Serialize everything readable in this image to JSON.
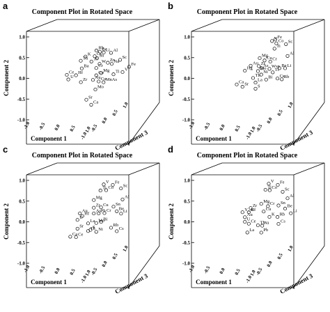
{
  "chart_data": [
    {
      "type": "scatter",
      "letter": "a",
      "title": "Component Plot in Rotated Space",
      "xlabel": "Component 1",
      "ylabel": "Component 2",
      "zlabel": "Component 3",
      "ticks_component1": [
        "-1.0",
        "-0.5",
        "0.0",
        "0.5",
        "1.0"
      ],
      "ticks_component2": [
        "1.0",
        "0.5",
        "0.0",
        "-0.5",
        "-1.0"
      ],
      "ticks_component3": [
        "-1.0",
        "-0.5",
        "0.0",
        "0.5",
        "1.0"
      ],
      "points": [
        {
          "label": "Rb",
          "c1": 0.05,
          "c2": 0.68,
          "c3": 0.2
        },
        {
          "label": "Be",
          "c1": 0.12,
          "c2": 0.65,
          "c3": 0.2
        },
        {
          "label": "Li",
          "c1": 0.2,
          "c2": 0.63,
          "c3": 0.2
        },
        {
          "label": "Al",
          "c1": 0.35,
          "c2": 0.62,
          "c3": 0.2
        },
        {
          "label": "Cs",
          "c1": 0.05,
          "c2": 0.55,
          "c3": 0.1
        },
        {
          "label": "Sn",
          "c1": 0.1,
          "c2": 0.5,
          "c3": 0.1
        },
        {
          "label": "K",
          "c1": -0.12,
          "c2": 0.55,
          "c3": 0.05
        },
        {
          "label": "Tl",
          "c1": 0.0,
          "c2": 0.42,
          "c3": 0.05
        },
        {
          "label": "Th",
          "c1": -0.2,
          "c2": 0.45,
          "c3": 0.0
        },
        {
          "label": "Sc",
          "c1": 0.5,
          "c2": 0.42,
          "c3": 0.3
        },
        {
          "label": "W",
          "c1": 0.15,
          "c2": 0.35,
          "c3": 0.1
        },
        {
          "label": "Zn",
          "c1": 0.32,
          "c2": 0.38,
          "c3": 0.1
        },
        {
          "label": "Na",
          "c1": 0.4,
          "c2": 0.35,
          "c3": 0.1
        },
        {
          "label": "Ba",
          "c1": -0.18,
          "c2": 0.25,
          "c3": 0.0
        },
        {
          "label": "Cr",
          "c1": 0.1,
          "c2": 0.25,
          "c3": 0.05
        },
        {
          "label": "Fe",
          "c1": 0.65,
          "c2": 0.22,
          "c3": 0.4
        },
        {
          "label": "Ce",
          "c1": -0.45,
          "c2": 0.1,
          "c3": -0.1
        },
        {
          "label": "Hf",
          "c1": -0.28,
          "c2": 0.08,
          "c3": -0.05
        },
        {
          "label": "V",
          "c1": 0.55,
          "c2": 0.1,
          "c3": 0.3
        },
        {
          "label": "Mg",
          "c1": 0.2,
          "c2": 0.12,
          "c3": 0.05
        },
        {
          "label": "Co",
          "c1": 0.1,
          "c2": 0.06,
          "c3": 0.05
        },
        {
          "label": "Ti",
          "c1": 0.4,
          "c2": 0.06,
          "c3": 0.2
        },
        {
          "label": "U",
          "c1": -0.42,
          "c2": -0.02,
          "c3": -0.1
        },
        {
          "label": "Au",
          "c1": 0.05,
          "c2": -0.05,
          "c3": 0.0
        },
        {
          "label": "Cu",
          "c1": 0.15,
          "c2": -0.1,
          "c3": 0.05
        },
        {
          "label": "MnAs",
          "c1": 0.25,
          "c2": -0.12,
          "c3": 0.05
        },
        {
          "label": "Zr",
          "c1": -0.18,
          "c2": -0.1,
          "c3": -0.05
        },
        {
          "label": "Mo",
          "c1": 0.1,
          "c2": -0.3,
          "c3": 0.0
        },
        {
          "label": "Sr",
          "c1": -0.05,
          "c2": -0.55,
          "c3": -0.1
        },
        {
          "label": "Ca",
          "c1": 0.05,
          "c2": -0.68,
          "c3": -0.1
        }
      ]
    },
    {
      "type": "scatter",
      "letter": "b",
      "title": "Component Plot in Rotated Space",
      "xlabel": "Component 1",
      "ylabel": "Component 2",
      "zlabel": "Component 3",
      "ticks_component1": [
        "-1.0",
        "-0.5",
        "0.0",
        "0.5",
        "1.0"
      ],
      "ticks_component2": [
        "1.0",
        "0.5",
        "0.0",
        "-0.5",
        "-1.0"
      ],
      "ticks_component3": [
        "-1.0",
        "-0.5",
        "0.0",
        "0.5",
        "1.0"
      ],
      "points": [
        {
          "label": "Fe",
          "c1": 0.3,
          "c2": 0.95,
          "c3": 0.3
        },
        {
          "label": "V",
          "c1": 0.25,
          "c2": 0.92,
          "c3": 0.25
        },
        {
          "label": "Co",
          "c1": 0.32,
          "c2": 0.85,
          "c3": 0.3
        },
        {
          "label": "Sc",
          "c1": 0.5,
          "c2": 0.82,
          "c3": 0.35
        },
        {
          "label": "Ti",
          "c1": 0.3,
          "c2": 0.72,
          "c3": 0.25
        },
        {
          "label": "Al",
          "c1": 0.55,
          "c2": 0.52,
          "c3": 0.3
        },
        {
          "label": "Mg",
          "c1": 0.05,
          "c2": 0.5,
          "c3": 0.1
        },
        {
          "label": "Cu",
          "c1": 0.15,
          "c2": 0.44,
          "c3": 0.1
        },
        {
          "label": "Cr",
          "c1": 0.25,
          "c2": 0.4,
          "c3": 0.15
        },
        {
          "label": "Au",
          "c1": -0.1,
          "c2": 0.32,
          "c3": 0.0
        },
        {
          "label": "Zr",
          "c1": 0.05,
          "c2": 0.3,
          "c3": 0.05
        },
        {
          "label": "As",
          "c1": 0.1,
          "c2": 0.25,
          "c3": 0.05
        },
        {
          "label": "Wsn",
          "c1": 0.25,
          "c2": 0.22,
          "c3": 0.1
        },
        {
          "label": "Be",
          "c1": 0.42,
          "c2": 0.22,
          "c3": 0.2
        },
        {
          "label": "Li",
          "c1": 0.5,
          "c2": 0.2,
          "c3": 0.3
        },
        {
          "label": "Hg",
          "c1": -0.2,
          "c2": 0.2,
          "c3": -0.05
        },
        {
          "label": "Mo",
          "c1": 0.05,
          "c2": 0.18,
          "c3": 0.0
        },
        {
          "label": "Ni",
          "c1": 0.1,
          "c2": 0.08,
          "c3": 0.05
        },
        {
          "label": "Tl",
          "c1": 0.3,
          "c2": 0.12,
          "c3": 0.15
        },
        {
          "label": "Th",
          "c1": -0.05,
          "c2": 0.0,
          "c3": 0.0
        },
        {
          "label": "Bi",
          "c1": 0.2,
          "c2": -0.05,
          "c3": 0.05
        },
        {
          "label": "Cs",
          "c1": 0.38,
          "c2": -0.05,
          "c3": 0.2
        },
        {
          "label": "Rb",
          "c1": 0.45,
          "c2": -0.08,
          "c3": 0.25
        },
        {
          "label": "La",
          "c1": 0.0,
          "c2": -0.12,
          "c3": 0.0
        },
        {
          "label": "Ca",
          "c1": -0.35,
          "c2": -0.15,
          "c3": -0.1
        },
        {
          "label": "Sr",
          "c1": -0.25,
          "c2": -0.22,
          "c3": -0.05
        },
        {
          "label": "S",
          "c1": 0.0,
          "c2": -0.28,
          "c3": 0.0
        }
      ]
    },
    {
      "type": "scatter",
      "letter": "c",
      "title": "Component Plot in Rotated Space",
      "xlabel": "Component 1",
      "ylabel": "Component 2",
      "zlabel": "Component 3",
      "ticks_component1": [
        "-1.0",
        "-0.5",
        "0.0",
        "0.5",
        "1.0"
      ],
      "ticks_component2": [
        "1.0",
        "0.5",
        "0.0",
        "-0.5",
        "-1.0"
      ],
      "ticks_component3": [
        "-1.0",
        "-0.5",
        "0.0",
        "0.5",
        "1.0"
      ],
      "points": [
        {
          "label": "V",
          "c1": 0.2,
          "c2": 0.93,
          "c3": 0.2
        },
        {
          "label": "Fe",
          "c1": 0.35,
          "c2": 0.9,
          "c3": 0.3
        },
        {
          "label": "Ti",
          "c1": 0.15,
          "c2": 0.78,
          "c3": 0.15
        },
        {
          "label": "Co",
          "c1": 0.25,
          "c2": 0.78,
          "c3": 0.2
        },
        {
          "label": "Sc",
          "c1": 0.5,
          "c2": 0.8,
          "c3": 0.35
        },
        {
          "label": "Mg",
          "c1": 0.05,
          "c2": 0.55,
          "c3": 0.05
        },
        {
          "label": "Al",
          "c1": 0.55,
          "c2": 0.52,
          "c3": 0.3
        },
        {
          "label": "Zr",
          "c1": 0.05,
          "c2": 0.35,
          "c3": 0.05
        },
        {
          "label": "Cu",
          "c1": 0.18,
          "c2": 0.35,
          "c3": 0.1
        },
        {
          "label": "Sn",
          "c1": 0.4,
          "c2": 0.35,
          "c3": 0.2
        },
        {
          "label": "Au",
          "c1": -0.2,
          "c2": 0.22,
          "c3": -0.05
        },
        {
          "label": "Hf",
          "c1": -0.15,
          "c2": 0.15,
          "c3": -0.05
        },
        {
          "label": "As",
          "c1": 0.05,
          "c2": 0.2,
          "c3": 0.05
        },
        {
          "label": "Pb",
          "c1": 0.15,
          "c2": 0.2,
          "c3": 0.05
        },
        {
          "label": "Cr",
          "c1": 0.25,
          "c2": 0.2,
          "c3": 0.1
        },
        {
          "label": "Be",
          "c1": 0.45,
          "c2": 0.22,
          "c3": 0.25
        },
        {
          "label": "Li",
          "c1": 0.52,
          "c2": 0.15,
          "c3": 0.3
        },
        {
          "label": "U",
          "c1": -0.25,
          "c2": 0.05,
          "c3": -0.05
        },
        {
          "label": "La",
          "c1": -0.05,
          "c2": -0.05,
          "c3": 0.0
        },
        {
          "label": "Mo",
          "c1": 0.1,
          "c2": -0.05,
          "c3": 0.05
        },
        {
          "label": "Bi",
          "c1": 0.2,
          "c2": -0.02,
          "c3": 0.05
        },
        {
          "label": "Sr",
          "c1": -0.25,
          "c2": -0.18,
          "c3": -0.05
        },
        {
          "label": "Th",
          "c1": -0.05,
          "c2": -0.25,
          "c3": 0.0
        },
        {
          "label": "S",
          "c1": 0.0,
          "c2": -0.22,
          "c3": 0.0
        },
        {
          "label": "Ni",
          "c1": 0.1,
          "c2": -0.28,
          "c3": 0.05
        },
        {
          "label": "Rb",
          "c1": 0.35,
          "c2": -0.2,
          "c3": 0.2
        },
        {
          "label": "Cs",
          "c1": 0.45,
          "c2": -0.3,
          "c3": 0.25
        },
        {
          "label": "Ca",
          "c1": -0.38,
          "c2": -0.38,
          "c3": -0.1
        },
        {
          "label": "Ce",
          "c1": -0.28,
          "c2": -0.4,
          "c3": -0.05
        }
      ]
    },
    {
      "type": "scatter",
      "letter": "d",
      "title": "Component Plot in Rotated Space",
      "xlabel": "Component 1",
      "ylabel": "Component 2",
      "zlabel": "Component 3",
      "ticks_component1": [
        "-1.0",
        "-0.5",
        "0.0",
        "0.5",
        "1.0"
      ],
      "ticks_component2": [
        "1.0",
        "0.5",
        "0.0",
        "-0.5",
        "-1.0"
      ],
      "ticks_component3": [
        "-1.0",
        "-0.5",
        "0.0",
        "0.5",
        "1.0"
      ],
      "points": [
        {
          "label": "V",
          "c1": 0.2,
          "c2": 0.95,
          "c3": 0.2
        },
        {
          "label": "Fe",
          "c1": 0.35,
          "c2": 0.9,
          "c3": 0.3
        },
        {
          "label": "Ti",
          "c1": 0.15,
          "c2": 0.8,
          "c3": 0.15
        },
        {
          "label": "Co",
          "c1": 0.22,
          "c2": 0.78,
          "c3": 0.2
        },
        {
          "label": "Sc",
          "c1": 0.45,
          "c2": 0.72,
          "c3": 0.3
        },
        {
          "label": "Al",
          "c1": 0.55,
          "c2": 0.55,
          "c3": 0.3
        },
        {
          "label": "Mg",
          "c1": 0.1,
          "c2": 0.45,
          "c3": 0.05
        },
        {
          "label": "Zr",
          "c1": -0.1,
          "c2": 0.35,
          "c3": 0.0
        },
        {
          "label": "Cr",
          "c1": 0.22,
          "c2": 0.38,
          "c3": 0.1
        },
        {
          "label": "Sn",
          "c1": 0.4,
          "c2": 0.38,
          "c3": 0.2
        },
        {
          "label": "Be",
          "c1": 0.5,
          "c2": 0.28,
          "c3": 0.3
        },
        {
          "label": "Y_A",
          "c1": -0.25,
          "c2": 0.25,
          "c3": -0.05
        },
        {
          "label": "Hf",
          "c1": -0.12,
          "c2": 0.25,
          "c3": -0.05
        },
        {
          "label": "Cu",
          "c1": 0.15,
          "c2": 0.25,
          "c3": 0.05
        },
        {
          "label": "Li",
          "c1": 0.6,
          "c2": 0.15,
          "c3": 0.35
        },
        {
          "label": "Au",
          "c1": -0.2,
          "c2": 0.12,
          "c3": -0.05
        },
        {
          "label": "K",
          "c1": 0.25,
          "c2": 0.1,
          "c3": 0.1
        },
        {
          "label": "Rb",
          "c1": 0.38,
          "c2": 0.08,
          "c3": 0.2
        },
        {
          "label": "U",
          "c1": -0.2,
          "c2": 0.0,
          "c3": -0.05
        },
        {
          "label": "Ce",
          "c1": -0.12,
          "c2": -0.05,
          "c3": -0.05
        },
        {
          "label": "Th",
          "c1": 0.05,
          "c2": -0.1,
          "c3": 0.0
        },
        {
          "label": "Ni",
          "c1": 0.12,
          "c2": -0.12,
          "c3": 0.05
        },
        {
          "label": "Cs",
          "c1": 0.4,
          "c2": -0.1,
          "c3": 0.2
        },
        {
          "label": "La",
          "c1": -0.15,
          "c2": -0.28,
          "c3": -0.05
        },
        {
          "label": "Pb",
          "c1": 0.1,
          "c2": -0.3,
          "c3": 0.05
        }
      ]
    }
  ]
}
